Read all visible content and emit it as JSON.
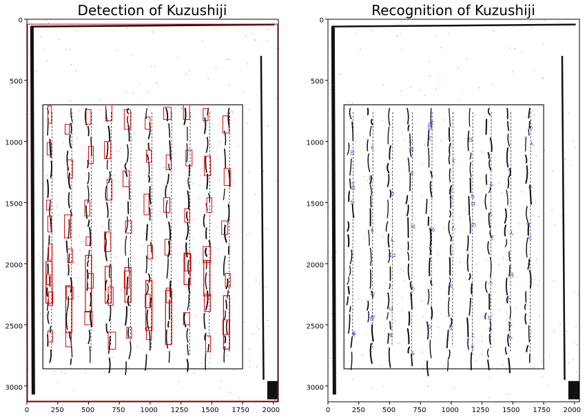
{
  "figure": {
    "panels": [
      {
        "title": "Detection of Kuzushiji",
        "xticks": [
          "0",
          "250",
          "500",
          "750",
          "1000",
          "1250",
          "1500",
          "1750",
          "2000"
        ],
        "yticks": [
          "0",
          "500",
          "1000",
          "1500",
          "2000",
          "2500",
          "3000"
        ]
      },
      {
        "title": "Recognition of Kuzushiji",
        "xticks": [
          "0",
          "250",
          "500",
          "750",
          "1000",
          "1250",
          "1500",
          "1750",
          "2000"
        ],
        "yticks": [
          "0",
          "500",
          "1000",
          "1500",
          "2000",
          "2500",
          "3000"
        ]
      }
    ]
  },
  "chart_data": [
    {
      "type": "image",
      "title": "Detection of Kuzushiji",
      "xlim": [
        0,
        2040
      ],
      "ylim": [
        3130,
        0
      ],
      "xticks": [
        0,
        250,
        500,
        750,
        1000,
        1250,
        1500,
        1750,
        2000
      ],
      "yticks": [
        0,
        500,
        1000,
        1500,
        2000,
        2500,
        3000
      ],
      "colors": {
        "box": "#d00000",
        "ink": "#111111"
      },
      "page_frame": {
        "x0": 30,
        "x1": 2010,
        "y0": 60,
        "y1": 3070
      },
      "text_frame": {
        "x0": 130,
        "x1": 1750,
        "y0": 700,
        "y1": 2860
      },
      "columns_x": [
        180,
        340,
        500,
        660,
        820,
        990,
        1150,
        1300,
        1460,
        1620
      ],
      "boxes": [
        [
          170,
          710,
          200,
          850
        ],
        [
          165,
          1010,
          200,
          1110
        ],
        [
          160,
          1480,
          190,
          1560
        ],
        [
          170,
          1610,
          200,
          1740
        ],
        [
          175,
          1840,
          205,
          1970
        ],
        [
          160,
          2090,
          190,
          2170
        ],
        [
          175,
          2230,
          210,
          2340
        ],
        [
          170,
          2550,
          210,
          2640
        ],
        [
          310,
          860,
          345,
          940
        ],
        [
          330,
          1150,
          370,
          1300
        ],
        [
          305,
          1600,
          355,
          1790
        ],
        [
          330,
          1880,
          370,
          1990
        ],
        [
          320,
          2190,
          375,
          2290
        ],
        [
          315,
          2560,
          360,
          2680
        ],
        [
          480,
          740,
          520,
          860
        ],
        [
          500,
          1040,
          540,
          1180
        ],
        [
          470,
          1480,
          510,
          1610
        ],
        [
          480,
          1780,
          520,
          1850
        ],
        [
          490,
          2080,
          540,
          2200
        ],
        [
          470,
          2390,
          530,
          2500
        ],
        [
          640,
          700,
          690,
          830
        ],
        [
          630,
          1000,
          680,
          1140
        ],
        [
          650,
          1310,
          690,
          1480
        ],
        [
          630,
          1740,
          680,
          1900
        ],
        [
          660,
          2190,
          700,
          2340
        ],
        [
          660,
          2560,
          720,
          2700
        ],
        [
          790,
          740,
          840,
          900
        ],
        [
          780,
          1240,
          830,
          1370
        ],
        [
          800,
          1650,
          850,
          1750
        ],
        [
          790,
          2060,
          830,
          2200
        ],
        [
          810,
          2520,
          850,
          2610
        ],
        [
          960,
          800,
          1000,
          900
        ],
        [
          970,
          1070,
          1010,
          1170
        ],
        [
          950,
          1430,
          990,
          1600
        ],
        [
          980,
          1850,
          1020,
          1960
        ],
        [
          960,
          2250,
          1000,
          2360
        ],
        [
          970,
          2520,
          1010,
          2620
        ],
        [
          1110,
          720,
          1170,
          820
        ],
        [
          1130,
          1110,
          1170,
          1230
        ],
        [
          1110,
          1460,
          1160,
          1580
        ],
        [
          1120,
          1800,
          1160,
          1930
        ],
        [
          1130,
          2200,
          1170,
          2320
        ],
        [
          1270,
          700,
          1320,
          820
        ],
        [
          1290,
          1070,
          1340,
          1200
        ],
        [
          1280,
          1550,
          1320,
          1660
        ],
        [
          1280,
          1920,
          1330,
          2060
        ],
        [
          1270,
          2400,
          1320,
          2500
        ],
        [
          1430,
          730,
          1470,
          830
        ],
        [
          1440,
          1120,
          1490,
          1280
        ],
        [
          1460,
          1460,
          1500,
          1580
        ],
        [
          1430,
          1860,
          1490,
          1990
        ],
        [
          1440,
          2250,
          1490,
          2390
        ],
        [
          1450,
          2590,
          1490,
          2720
        ],
        [
          1590,
          790,
          1640,
          930
        ],
        [
          1600,
          1220,
          1650,
          1360
        ],
        [
          1580,
          1650,
          1630,
          1760
        ],
        [
          1610,
          2080,
          1650,
          2190
        ],
        [
          1590,
          2460,
          1640,
          2580
        ]
      ]
    },
    {
      "type": "image",
      "title": "Recognition of Kuzushiji",
      "xlim": [
        0,
        2040
      ],
      "ylim": [
        3130,
        0
      ],
      "xticks": [
        0,
        250,
        500,
        750,
        1000,
        1250,
        1500,
        1750,
        2000
      ],
      "yticks": [
        0,
        500,
        1000,
        1500,
        2000,
        2500,
        3000
      ],
      "colors": {
        "label": "#1a2fd0",
        "ink": "#111111"
      },
      "page_frame": {
        "x0": 30,
        "x1": 2010,
        "y0": 60,
        "y1": 3070
      },
      "text_frame": {
        "x0": 130,
        "x1": 1750,
        "y0": 700,
        "y1": 2860
      }
    }
  ]
}
